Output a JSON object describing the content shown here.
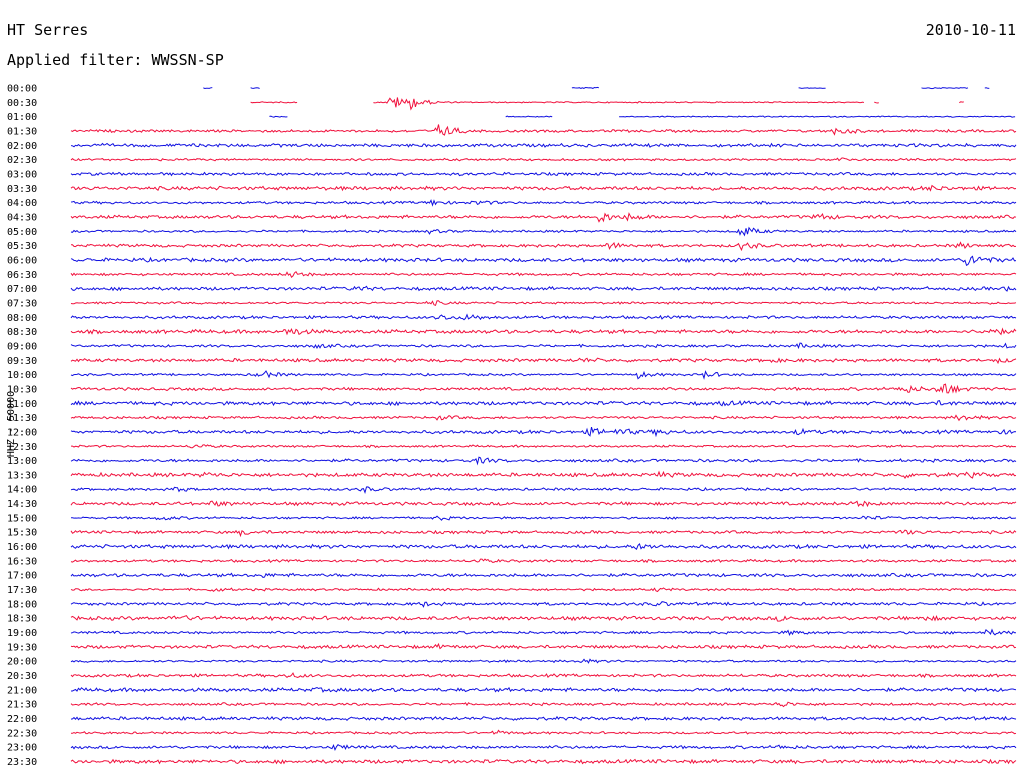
{
  "header": {
    "station": "HT Serres",
    "date": "2010-10-11",
    "filter": "Applied filter: WWSSN-SP"
  },
  "chart_data": {
    "type": "line",
    "title": "HT Serres",
    "subtitle": "Applied filter: WWSSN-SP",
    "ylabel": "HHZ - 50000",
    "colors": [
      "#1010e0",
      "#f0103c"
    ],
    "rows": [
      {
        "label": "00:00",
        "segments": [
          [
            0.14,
            0.15
          ],
          [
            0.19,
            0.2
          ],
          [
            0.53,
            0.56
          ],
          [
            0.77,
            0.8
          ],
          [
            0.9,
            0.95
          ],
          [
            0.967,
            0.972
          ]
        ],
        "events": []
      },
      {
        "label": "00:30",
        "segments": [
          [
            0.19,
            0.24
          ],
          [
            0.32,
            0.84
          ],
          [
            0.85,
            0.855
          ],
          [
            0.94,
            0.945
          ]
        ],
        "events": [
          [
            0.34,
            3.5
          ],
          [
            0.36,
            2.5
          ]
        ]
      },
      {
        "label": "01:00",
        "segments": [
          [
            0.21,
            0.23
          ],
          [
            0.46,
            0.51
          ],
          [
            0.58,
            1.0
          ]
        ],
        "events": []
      },
      {
        "label": "01:30",
        "segments": [
          [
            0,
            1
          ]
        ],
        "events": [
          [
            0.39,
            3.2
          ],
          [
            0.81,
            1.8
          ]
        ]
      },
      {
        "label": "02:00",
        "segments": [
          [
            0,
            1
          ]
        ],
        "events": []
      },
      {
        "label": "02:30",
        "segments": [
          [
            0,
            1
          ]
        ],
        "events": [
          [
            0.81,
            0.8
          ]
        ]
      },
      {
        "label": "03:00",
        "segments": [
          [
            0,
            1
          ]
        ],
        "events": []
      },
      {
        "label": "03:30",
        "segments": [
          [
            0,
            1
          ]
        ],
        "events": [
          [
            0.91,
            0.8
          ]
        ]
      },
      {
        "label": "04:00",
        "segments": [
          [
            0,
            1
          ]
        ],
        "events": [
          [
            0.38,
            1.2
          ],
          [
            0.43,
            0.8
          ]
        ]
      },
      {
        "label": "04:30",
        "segments": [
          [
            0,
            1
          ]
        ],
        "events": [
          [
            0.56,
            2.2
          ],
          [
            0.59,
            1.2
          ],
          [
            0.79,
            1.2
          ]
        ]
      },
      {
        "label": "05:00",
        "segments": [
          [
            0,
            1
          ]
        ],
        "events": [
          [
            0.71,
            2.6
          ],
          [
            0.38,
            0.8
          ]
        ]
      },
      {
        "label": "05:30",
        "segments": [
          [
            0,
            1
          ]
        ],
        "events": [
          [
            0.57,
            1.2
          ],
          [
            0.71,
            1.5
          ],
          [
            0.94,
            1.0
          ]
        ]
      },
      {
        "label": "06:00",
        "segments": [
          [
            0,
            1
          ]
        ],
        "events": [
          [
            0.95,
            3.0
          ]
        ]
      },
      {
        "label": "06:30",
        "segments": [
          [
            0,
            1
          ]
        ],
        "events": [
          [
            0.23,
            1.5
          ]
        ]
      },
      {
        "label": "07:00",
        "segments": [
          [
            0,
            1
          ]
        ],
        "events": [
          [
            0.3,
            0.8
          ],
          [
            0.99,
            0.6
          ]
        ]
      },
      {
        "label": "07:30",
        "segments": [
          [
            0,
            1
          ]
        ],
        "events": [
          [
            0.38,
            1.0
          ]
        ]
      },
      {
        "label": "08:00",
        "segments": [
          [
            0,
            1
          ]
        ],
        "events": [
          [
            0.39,
            1.2
          ],
          [
            0.42,
            1.2
          ]
        ]
      },
      {
        "label": "08:30",
        "segments": [
          [
            0,
            1
          ]
        ],
        "events": [
          [
            0.23,
            1.8
          ],
          [
            0.97,
            2.0
          ]
        ]
      },
      {
        "label": "09:00",
        "segments": [
          [
            0,
            1
          ]
        ],
        "events": [
          [
            0.26,
            0.8
          ],
          [
            0.77,
            0.8
          ],
          [
            0.99,
            0.7
          ]
        ]
      },
      {
        "label": "09:30",
        "segments": [
          [
            0,
            1
          ]
        ],
        "events": [
          [
            0.54,
            0.6
          ],
          [
            0.74,
            0.6
          ],
          [
            0.98,
            0.6
          ]
        ]
      },
      {
        "label": "10:00",
        "segments": [
          [
            0,
            1
          ]
        ],
        "events": [
          [
            0.2,
            2.0
          ],
          [
            0.6,
            1.4
          ],
          [
            0.67,
            1.4
          ],
          [
            1.01,
            1.8
          ]
        ]
      },
      {
        "label": "10:30",
        "segments": [
          [
            0,
            1
          ]
        ],
        "events": [
          [
            0.88,
            2.0
          ],
          [
            0.92,
            3.5
          ]
        ]
      },
      {
        "label": "11:00",
        "segments": [
          [
            0,
            1
          ]
        ],
        "events": [
          [
            0.69,
            0.6
          ],
          [
            0.92,
            0.6
          ]
        ]
      },
      {
        "label": "11:30",
        "segments": [
          [
            0,
            1
          ]
        ],
        "events": [
          [
            0.39,
            0.8
          ],
          [
            0.94,
            1.4
          ]
        ]
      },
      {
        "label": "12:00",
        "segments": [
          [
            0,
            1
          ]
        ],
        "events": [
          [
            0.55,
            1.6
          ],
          [
            0.58,
            1.2
          ],
          [
            0.62,
            1.0
          ],
          [
            0.77,
            1.0
          ],
          [
            0.98,
            0.8
          ]
        ]
      },
      {
        "label": "12:30",
        "segments": [
          [
            0,
            1
          ]
        ],
        "events": [
          [
            0.13,
            0.9
          ]
        ]
      },
      {
        "label": "13:00",
        "segments": [
          [
            0,
            1
          ]
        ],
        "events": [
          [
            0.43,
            1.2
          ]
        ]
      },
      {
        "label": "13:30",
        "segments": [
          [
            0,
            1
          ]
        ],
        "events": [
          [
            0.14,
            0.8
          ],
          [
            0.62,
            0.8
          ],
          [
            0.88,
            0.8
          ],
          [
            0.95,
            0.8
          ]
        ]
      },
      {
        "label": "14:00",
        "segments": [
          [
            0,
            1
          ]
        ],
        "events": [
          [
            0.11,
            0.8
          ],
          [
            0.31,
            1.0
          ]
        ]
      },
      {
        "label": "14:30",
        "segments": [
          [
            0,
            1
          ]
        ],
        "events": [
          [
            0.15,
            1.0
          ],
          [
            0.83,
            1.2
          ]
        ]
      },
      {
        "label": "15:00",
        "segments": [
          [
            0,
            1
          ]
        ],
        "events": [
          [
            0.095,
            1.0
          ],
          [
            0.39,
            0.8
          ],
          [
            0.84,
            0.8
          ]
        ]
      },
      {
        "label": "15:30",
        "segments": [
          [
            0,
            1
          ]
        ],
        "events": [
          [
            0.18,
            1.0
          ],
          [
            0.88,
            0.8
          ]
        ]
      },
      {
        "label": "16:00",
        "segments": [
          [
            0,
            1
          ]
        ],
        "events": [
          [
            0.6,
            1.0
          ],
          [
            1.02,
            1.0
          ]
        ]
      },
      {
        "label": "16:30",
        "segments": [
          [
            0,
            1
          ]
        ],
        "events": [
          [
            0.43,
            0.8
          ]
        ]
      },
      {
        "label": "17:00",
        "segments": [
          [
            0,
            1
          ]
        ],
        "events": [
          [
            0.2,
            0.6
          ],
          [
            1.03,
            0.8
          ]
        ]
      },
      {
        "label": "17:30",
        "segments": [
          [
            0,
            1
          ]
        ],
        "events": [
          [
            0.15,
            0.8
          ],
          [
            0.62,
            0.6
          ]
        ]
      },
      {
        "label": "18:00",
        "segments": [
          [
            0,
            1
          ]
        ],
        "events": [
          [
            0.37,
            0.9
          ],
          [
            0.62,
            0.8
          ]
        ]
      },
      {
        "label": "18:30",
        "segments": [
          [
            0,
            1
          ]
        ],
        "events": [
          [
            0.11,
            1.0
          ],
          [
            0.75,
            0.8
          ],
          [
            0.9,
            0.8
          ]
        ]
      },
      {
        "label": "19:00",
        "segments": [
          [
            0,
            1
          ]
        ],
        "events": [
          [
            0.76,
            0.8
          ],
          [
            0.97,
            1.2
          ]
        ]
      },
      {
        "label": "19:30",
        "segments": [
          [
            0,
            1
          ]
        ],
        "events": [
          [
            0.39,
            0.6
          ]
        ]
      },
      {
        "label": "20:00",
        "segments": [
          [
            0,
            1
          ]
        ],
        "events": [
          [
            0.54,
            0.8
          ]
        ]
      },
      {
        "label": "20:30",
        "segments": [
          [
            0,
            1
          ]
        ],
        "events": [
          [
            0.23,
            1.0
          ]
        ]
      },
      {
        "label": "21:00",
        "segments": [
          [
            0,
            1
          ]
        ],
        "events": [
          [
            0.26,
            0.5
          ]
        ]
      },
      {
        "label": "21:30",
        "segments": [
          [
            0,
            1
          ]
        ],
        "events": [
          [
            0.75,
            1.2
          ]
        ]
      },
      {
        "label": "22:00",
        "segments": [
          [
            0,
            1
          ]
        ],
        "events": []
      },
      {
        "label": "22:30",
        "segments": [
          [
            0,
            1
          ]
        ],
        "events": [
          [
            0.45,
            0.8
          ]
        ]
      },
      {
        "label": "23:00",
        "segments": [
          [
            0,
            1
          ]
        ],
        "events": [
          [
            0.28,
            1.0
          ],
          [
            0.75,
            0.6
          ]
        ]
      },
      {
        "label": "23:30",
        "segments": [
          [
            0,
            1
          ]
        ],
        "events": []
      }
    ]
  }
}
